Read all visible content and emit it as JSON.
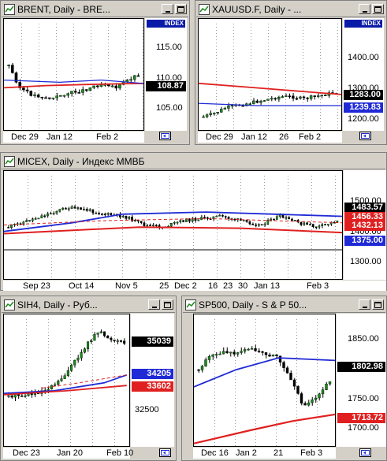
{
  "windows": [
    {
      "id": "brent",
      "title": "BRENT, Daily - BRE...",
      "scale_header": "INDEX",
      "ticks": [
        "115.00",
        "110.00",
        "105.00"
      ],
      "price_labels": [
        {
          "text": "108.87",
          "bg": "#000000",
          "fg": "#ffffff"
        }
      ],
      "x_labels": [
        "Dec 29",
        "Jan 12",
        "Feb 2"
      ]
    },
    {
      "id": "xauusd",
      "title": "XAUUSD.F, Daily - ...",
      "scale_header": "INDEX",
      "ticks": [
        "1400.00",
        "1300.00",
        "1200.00"
      ],
      "price_labels": [
        {
          "text": "1283.00",
          "bg": "#000000",
          "fg": "#ffffff"
        },
        {
          "text": "1239.83",
          "bg": "#1f2ad6",
          "fg": "#ffffff"
        }
      ],
      "x_labels": [
        "Dec 29",
        "Jan 12",
        "26",
        "Feb 2"
      ]
    },
    {
      "id": "micex",
      "title": "MICEX, Daily - Индекс ММВБ",
      "ticks": [
        "1500.00",
        "1400.00",
        "1300.00"
      ],
      "price_labels": [
        {
          "text": "1483.57",
          "bg": "#000000",
          "fg": "#ffffff"
        },
        {
          "text": "1456.33",
          "bg": "#e02020",
          "fg": "#ffffff"
        },
        {
          "text": "1432.13",
          "bg": "#e02020",
          "fg": "#ffffff"
        },
        {
          "text": "1375.00",
          "bg": "#1f2ad6",
          "fg": "#ffffff"
        }
      ],
      "x_labels": [
        "Sep 23",
        "Oct 14",
        "Nov 5",
        "25",
        "Dec 2",
        "16",
        "23",
        "30",
        "Jan 13",
        "Feb 3"
      ]
    },
    {
      "id": "sih4",
      "title": "SIH4, Daily - Руб...",
      "ticks": [
        "32500"
      ],
      "price_labels": [
        {
          "text": "35039",
          "bg": "#000000",
          "fg": "#ffffff"
        },
        {
          "text": "34205",
          "bg": "#1f2ad6",
          "fg": "#ffffff"
        },
        {
          "text": "33602",
          "bg": "#e02020",
          "fg": "#ffffff"
        }
      ],
      "x_labels": [
        "Dec 23",
        "Jan 20",
        "Feb 10"
      ]
    },
    {
      "id": "sp500",
      "title": "SP500, Daily - S & P 50...",
      "ticks": [
        "1850.00",
        "1750.00",
        "1700.00"
      ],
      "price_labels": [
        {
          "text": "1802.98",
          "bg": "#000000",
          "fg": "#ffffff"
        },
        {
          "text": "1713.72",
          "bg": "#e02020",
          "fg": "#ffffff"
        }
      ],
      "x_labels": [
        "Dec 16",
        "Jan 2",
        "21",
        "Feb 3"
      ]
    }
  ],
  "colors": {
    "bull_candle": "#1a8a1a",
    "bear_candle": "#000000",
    "ma_blue": "#1f2ad6",
    "ma_red": "#e02020",
    "title_bar": "#d4d0c8"
  }
}
